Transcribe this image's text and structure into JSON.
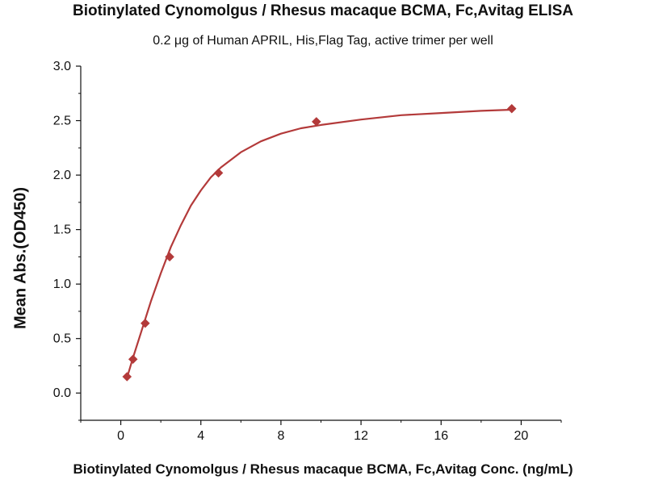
{
  "chart_data": {
    "type": "scatter",
    "title": "Biotinylated Cynomolgus / Rhesus macaque BCMA, Fc,Avitag ELISA",
    "subtitle": "0.2 μg of Human APRIL, His,Flag Tag, active trimer per well",
    "xlabel": "Biotinylated Cynomolgus / Rhesus macaque BCMA, Fc,Avitag Conc. (ng/mL)",
    "ylabel": "Mean Abs.(OD450)",
    "xlim": [
      -2,
      22
    ],
    "ylim": [
      -0.25,
      3.0
    ],
    "x_ticks": [
      0,
      4,
      8,
      12,
      16,
      20
    ],
    "x_tick_labels": [
      "0",
      "4",
      "8",
      "12",
      "16",
      "20"
    ],
    "y_ticks": [
      0.0,
      0.5,
      1.0,
      1.5,
      2.0,
      2.5,
      3.0
    ],
    "y_tick_labels": [
      "0.0",
      "0.5",
      "1.0",
      "1.5",
      "2.0",
      "2.5",
      "3.0"
    ],
    "grid": false,
    "series": [
      {
        "marker": "diamond",
        "x": [
          0.31,
          0.61,
          1.22,
          2.44,
          4.88,
          9.77,
          19.53
        ],
        "y": [
          0.15,
          0.31,
          0.64,
          1.25,
          2.02,
          2.49,
          2.61
        ]
      }
    ],
    "fit_curve": {
      "x": [
        0.31,
        0.6,
        1.0,
        1.5,
        2.0,
        2.5,
        3.0,
        3.5,
        4.0,
        4.5,
        5.0,
        6.0,
        7.0,
        8.0,
        9.0,
        10.0,
        12.0,
        14.0,
        16.0,
        18.0,
        19.53
      ],
      "y": [
        0.14,
        0.32,
        0.55,
        0.84,
        1.1,
        1.34,
        1.54,
        1.72,
        1.86,
        1.98,
        2.07,
        2.21,
        2.31,
        2.38,
        2.43,
        2.46,
        2.51,
        2.55,
        2.57,
        2.59,
        2.6
      ]
    },
    "color": "#b33a3a"
  }
}
